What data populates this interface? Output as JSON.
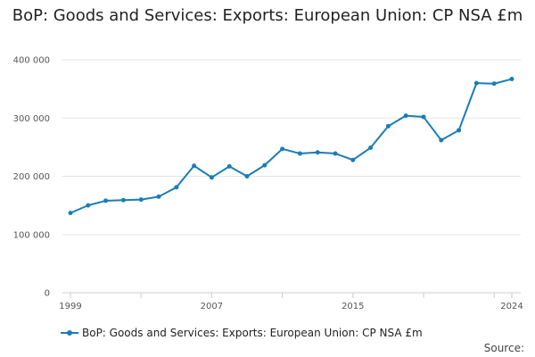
{
  "chart_data": {
    "type": "line",
    "title": "BoP: Goods and Services: Exports: European Union: CP NSA £m",
    "xlabel": "",
    "ylabel": "",
    "x": [
      1999,
      2000,
      2001,
      2002,
      2003,
      2004,
      2005,
      2006,
      2007,
      2008,
      2009,
      2010,
      2011,
      2012,
      2013,
      2014,
      2015,
      2016,
      2017,
      2018,
      2019,
      2020,
      2021,
      2022,
      2023,
      2024
    ],
    "series": [
      {
        "name": "BoP: Goods and Services: Exports: European Union: CP NSA £m",
        "color": "#1a7db6",
        "values": [
          137000,
          150000,
          158000,
          159000,
          160000,
          165000,
          181000,
          218000,
          198000,
          217000,
          200000,
          219000,
          247000,
          239000,
          241000,
          239000,
          228000,
          249000,
          286000,
          304000,
          302000,
          262000,
          279000,
          360000,
          359000,
          367000
        ]
      }
    ],
    "xlim": [
      1999,
      2024
    ],
    "ylim": [
      0,
      400000
    ],
    "x_ticks": [
      1999,
      2007,
      2015,
      2024
    ],
    "x_tick_labels": [
      "1999",
      "2007",
      "2015",
      "2024"
    ],
    "y_ticks": [
      0,
      100000,
      200000,
      300000,
      400000
    ],
    "y_tick_labels": [
      "0",
      "100 000",
      "200 000",
      "300 000",
      "400 000"
    ],
    "grid": true,
    "legend_position": "bottom-left"
  },
  "footer": {
    "source_label": "Source:"
  }
}
